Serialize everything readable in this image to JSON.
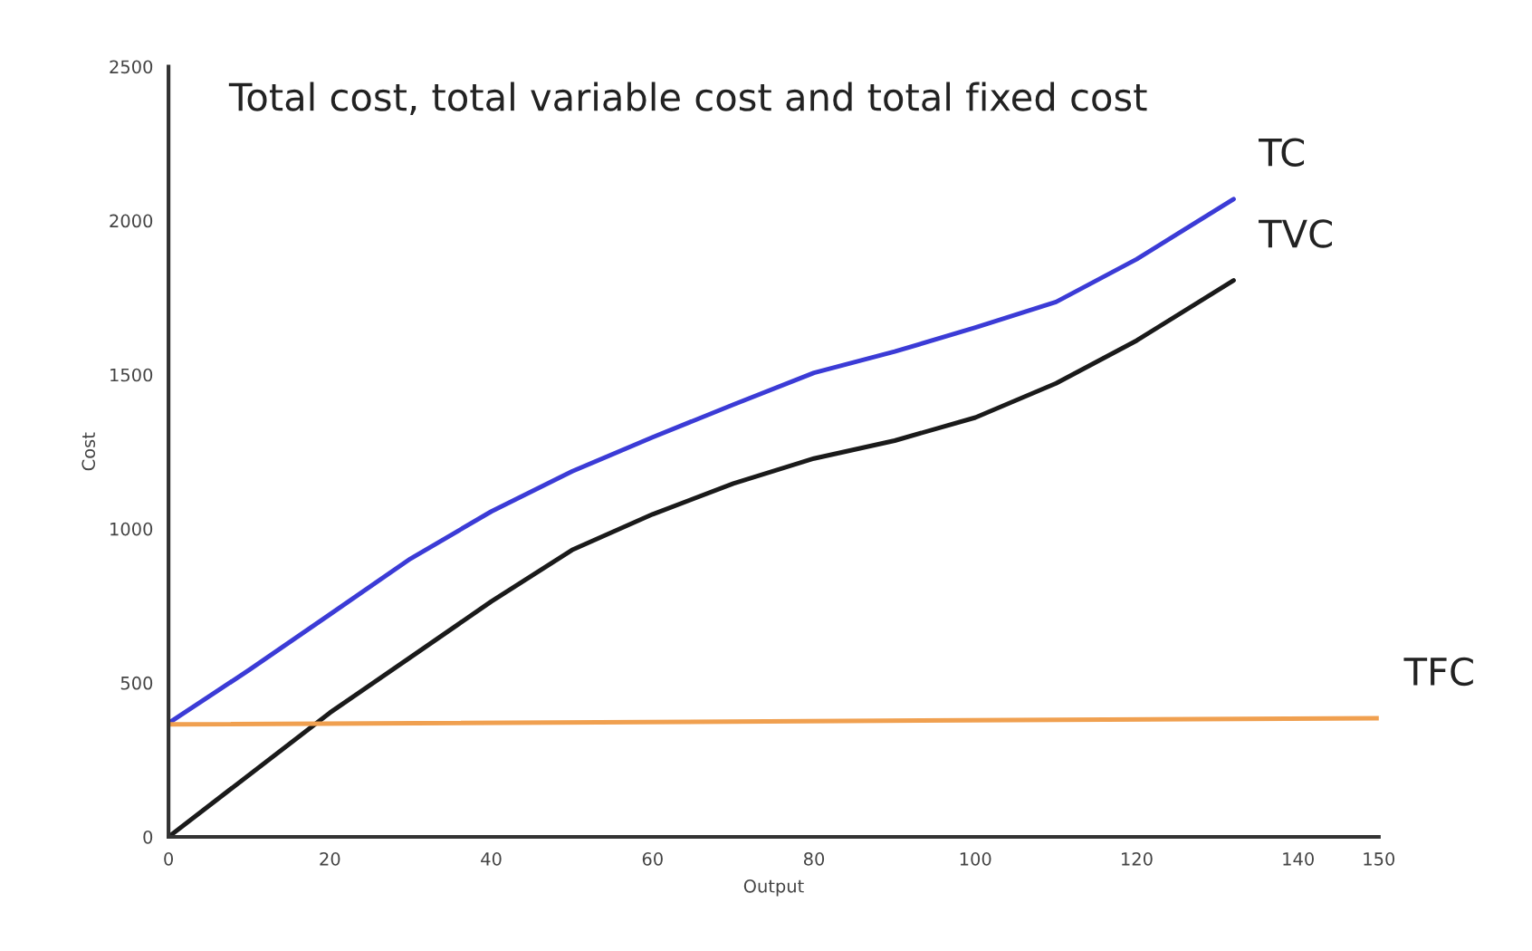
{
  "chart_data": {
    "type": "line",
    "title": "Total cost, total variable cost and total fixed cost",
    "xlabel": "Output",
    "ylabel": "Cost",
    "xlim": [
      0,
      150
    ],
    "ylim": [
      0,
      2500
    ],
    "xticks": [
      0,
      20,
      40,
      60,
      80,
      100,
      120,
      140,
      150
    ],
    "yticks": [
      0,
      500,
      1000,
      1500,
      2000,
      2500
    ],
    "grid": false,
    "legend": false,
    "marker": "none",
    "line_style": "solid",
    "series": [
      {
        "name": "TC",
        "color": "#3b3bd6",
        "x": [
          0,
          10,
          20,
          30,
          40,
          50,
          60,
          70,
          80,
          90,
          100,
          110,
          120,
          132
        ],
        "values": [
          369,
          542,
          722,
          903,
          1056,
          1186,
          1297,
          1403,
          1506,
          1575,
          1653,
          1736,
          1875,
          2070
        ]
      },
      {
        "name": "TVC",
        "color": "#1a1a1a",
        "x": [
          0,
          20,
          30,
          40,
          50,
          60,
          70,
          80,
          90,
          100,
          110,
          120,
          132
        ],
        "values": [
          0,
          403,
          583,
          764,
          931,
          1047,
          1147,
          1228,
          1286,
          1361,
          1472,
          1611,
          1806
        ]
      },
      {
        "name": "TFC",
        "color": "#f0a050",
        "x": [
          0,
          150
        ],
        "values": [
          365,
          385
        ]
      }
    ]
  }
}
